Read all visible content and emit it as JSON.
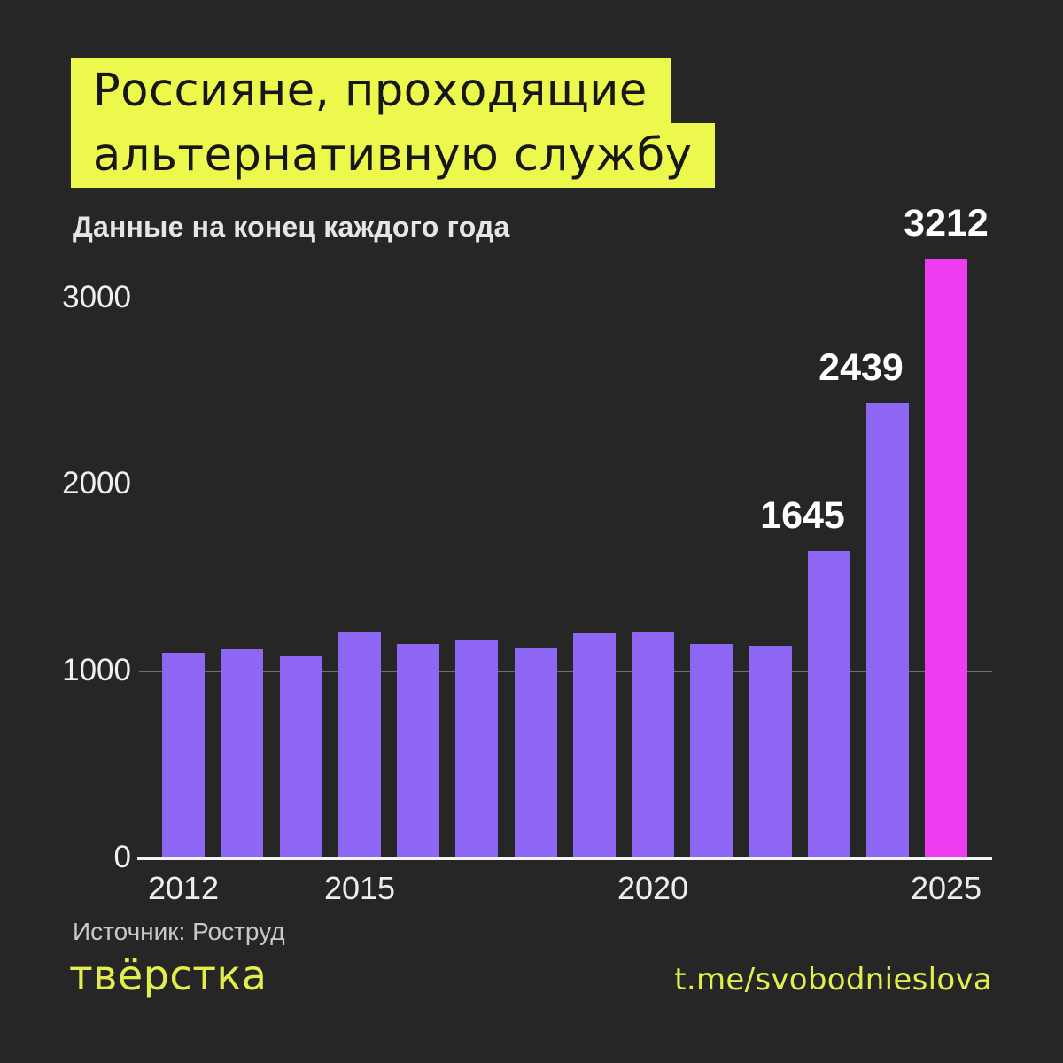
{
  "title": {
    "line1": "Россияне, проходящие",
    "line2": "альтернативную службу"
  },
  "subtitle": "Данные на конец каждого года",
  "chart_data": {
    "type": "bar",
    "title": "Россияне, проходящие альтернативную службу",
    "subtitle": "Данные на конец каждого года",
    "categories": [
      2012,
      2013,
      2014,
      2015,
      2016,
      2017,
      2018,
      2019,
      2020,
      2021,
      2022,
      2023,
      2024,
      2025
    ],
    "values": [
      1100,
      1120,
      1085,
      1215,
      1150,
      1165,
      1125,
      1205,
      1215,
      1150,
      1140,
      1645,
      2439,
      3212
    ],
    "bar_labels": {
      "2023": "1645",
      "2024": "2439",
      "2025": "3212"
    },
    "xticks_shown": [
      "2012",
      "2015",
      "2020",
      "2025"
    ],
    "yticks": [
      0,
      1000,
      2000,
      3000
    ],
    "ylim": [
      0,
      3300
    ],
    "grid": "horizontal",
    "legend": "none",
    "highlight_category": 2025,
    "colors": {
      "bar": "#8d66f4",
      "highlight_bar": "#ee3cf0"
    }
  },
  "footer": {
    "source": "Источник: Роструд",
    "logo": "твёрстка",
    "link": "t.me/svobodnieslova"
  },
  "colors": {
    "background": "#262626",
    "title_highlight": "#ecf84b",
    "accent_yellow": "#e3ee4d",
    "axis": "#f4f4f4",
    "gridline": "#6e6e6e",
    "text_light": "#e6e6e6",
    "text_muted": "#c9c9c9",
    "bar_label": "#ffffff"
  }
}
